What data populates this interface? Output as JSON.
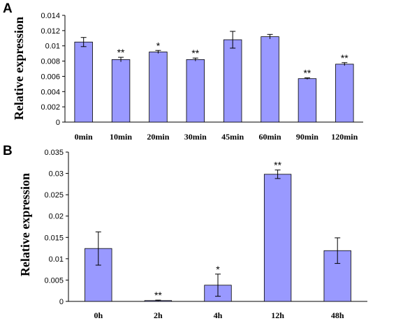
{
  "chart_data": [
    {
      "type": "bar",
      "panel_label": "A",
      "ylabel": "Relative expression",
      "xlabel": "",
      "ylim": [
        0,
        0.014
      ],
      "y_ticks": [
        "0",
        "0.002",
        "0.004",
        "0.006",
        "0.008",
        "0.01",
        "0.012",
        "0.014"
      ],
      "categories": [
        "0min",
        "10min",
        "20min",
        "30min",
        "45min",
        "60min",
        "90min",
        "120min"
      ],
      "values": [
        0.0105,
        0.0082,
        0.0092,
        0.0082,
        0.0108,
        0.0112,
        0.0057,
        0.0076
      ],
      "errors": [
        0.0006,
        0.0003,
        0.0002,
        0.0002,
        0.0011,
        0.0003,
        0.0001,
        0.0002
      ],
      "significance": [
        "",
        "**",
        "*",
        "**",
        "",
        "",
        "**",
        "**"
      ],
      "bar_color": "#9999ff",
      "grid": false
    },
    {
      "type": "bar",
      "panel_label": "B",
      "ylabel": "Relative expression",
      "xlabel": "",
      "ylim": [
        0,
        0.035
      ],
      "y_ticks": [
        "0",
        "0.005",
        "0.01",
        "0.015",
        "0.02",
        "0.025",
        "0.03",
        "0.035"
      ],
      "categories": [
        "0h",
        "2h",
        "4h",
        "12h",
        "48h"
      ],
      "values": [
        0.0124,
        0.0002,
        0.0038,
        0.0298,
        0.0119
      ],
      "errors": [
        0.0039,
        0.0001,
        0.0026,
        0.001,
        0.003
      ],
      "significance": [
        "",
        "**",
        "*",
        "**",
        ""
      ],
      "bar_color": "#9999ff",
      "grid": false
    }
  ]
}
